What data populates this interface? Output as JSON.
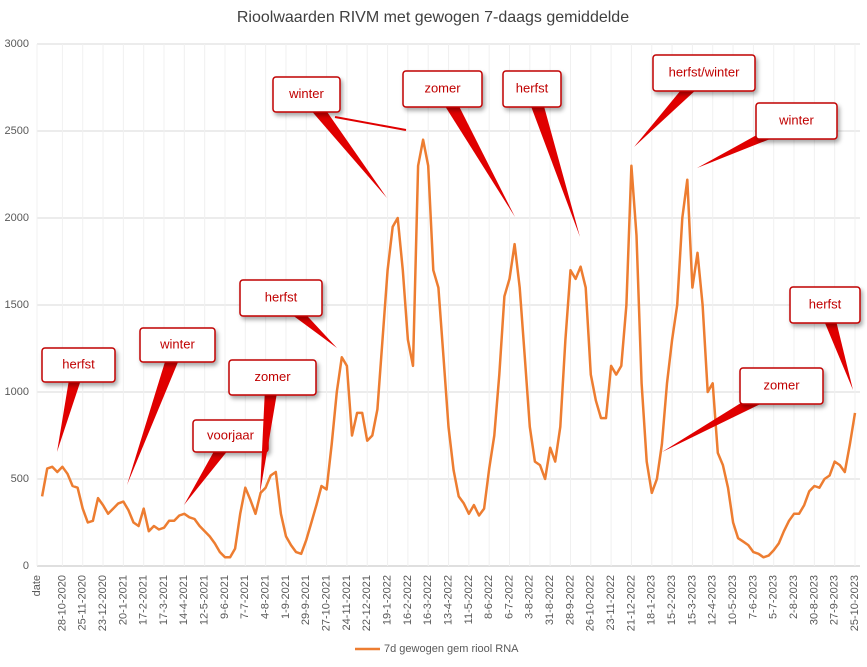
{
  "chart_data": {
    "type": "line",
    "title": "Rioolwaarden RIVM met gewogen 7-daags gemiddelde",
    "categories": [
      "date",
      null,
      null,
      null,
      null,
      "28-10-2020",
      null,
      null,
      null,
      "25-11-2020",
      null,
      null,
      null,
      "23-12-2020",
      null,
      null,
      null,
      "20-1-2021",
      null,
      null,
      null,
      "17-2-2021",
      null,
      null,
      null,
      "17-3-2021",
      null,
      null,
      null,
      "14-4-2021",
      null,
      null,
      null,
      "12-5-2021",
      null,
      null,
      null,
      "9-6-2021",
      null,
      null,
      null,
      "7-7-2021",
      null,
      null,
      null,
      "4-8-2021",
      null,
      null,
      null,
      "1-9-2021",
      null,
      null,
      null,
      "29-9-2021",
      null,
      null,
      null,
      "27-10-2021",
      null,
      null,
      null,
      "24-11-2021",
      null,
      null,
      null,
      "22-12-2021",
      null,
      null,
      null,
      "19-1-2022",
      null,
      null,
      null,
      "16-2-2022",
      null,
      null,
      null,
      "16-3-2022",
      null,
      null,
      null,
      "13-4-2022",
      null,
      null,
      null,
      "11-5-2022",
      null,
      null,
      null,
      "8-6-2022",
      null,
      null,
      null,
      "6-7-2022",
      null,
      null,
      null,
      "3-8-2022",
      null,
      null,
      null,
      "31-8-2022",
      null,
      null,
      null,
      "28-9-2022",
      null,
      null,
      null,
      "26-10-2022",
      null,
      null,
      null,
      "23-11-2022",
      null,
      null,
      null,
      "21-12-2022",
      null,
      null,
      null,
      "18-1-2023",
      null,
      null,
      null,
      "15-2-2023",
      null,
      null,
      null,
      "15-3-2023",
      null,
      null,
      null,
      "12-4-2023",
      null,
      null,
      null,
      "10-5-2023",
      null,
      null,
      null,
      "7-6-2023",
      null,
      null,
      null,
      "5-7-2023",
      null,
      null,
      null,
      "2-8-2023",
      null,
      null,
      null,
      "30-8-2023",
      null,
      null,
      null,
      "27-9-2023",
      null,
      null,
      null,
      "25-10-2023"
    ],
    "series": [
      {
        "name": "7d gewogen gem riool RNA",
        "color": "#ed7d31",
        "values": [
          null,
          400,
          560,
          570,
          540,
          570,
          530,
          460,
          450,
          330,
          250,
          260,
          390,
          350,
          300,
          330,
          360,
          370,
          320,
          250,
          230,
          330,
          200,
          230,
          210,
          220,
          260,
          260,
          290,
          300,
          280,
          270,
          230,
          200,
          170,
          130,
          80,
          50,
          50,
          100,
          300,
          450,
          380,
          300,
          420,
          450,
          520,
          540,
          300,
          170,
          120,
          80,
          70,
          150,
          250,
          350,
          460,
          440,
          700,
          1000,
          1200,
          1150,
          750,
          880,
          880,
          720,
          750,
          900,
          1300,
          1700,
          1950,
          2000,
          1700,
          1300,
          1150,
          2300,
          2450,
          2300,
          1700,
          1600,
          1200,
          800,
          550,
          400,
          360,
          300,
          350,
          290,
          330,
          560,
          750,
          1100,
          1550,
          1650,
          1850,
          1600,
          1200,
          800,
          600,
          580,
          500,
          680,
          600,
          800,
          1300,
          1700,
          1650,
          1720,
          1600,
          1100,
          950,
          850,
          850,
          1150,
          1100,
          1150,
          1500,
          2300,
          1900,
          1050,
          600,
          420,
          500,
          700,
          1050,
          1300,
          1500,
          2000,
          2220,
          1600,
          1800,
          1500,
          1000,
          1050,
          650,
          580,
          450,
          250,
          160,
          140,
          120,
          80,
          70,
          50,
          60,
          90,
          130,
          200,
          260,
          300,
          300,
          350,
          430,
          460,
          450,
          500,
          520,
          600,
          580,
          540,
          700,
          880
        ]
      }
    ],
    "ylim": [
      0,
      3000
    ],
    "yticks": [
      0,
      500,
      1000,
      1500,
      2000,
      2500,
      3000
    ],
    "grid": true,
    "legend": "bottom",
    "annotations": [
      "herfst",
      "winter",
      "voorjaar",
      "zomer",
      "herfst",
      "winter",
      "zomer",
      "herfst",
      "herfst/winter",
      "winter",
      "zomer",
      "herfst"
    ]
  }
}
